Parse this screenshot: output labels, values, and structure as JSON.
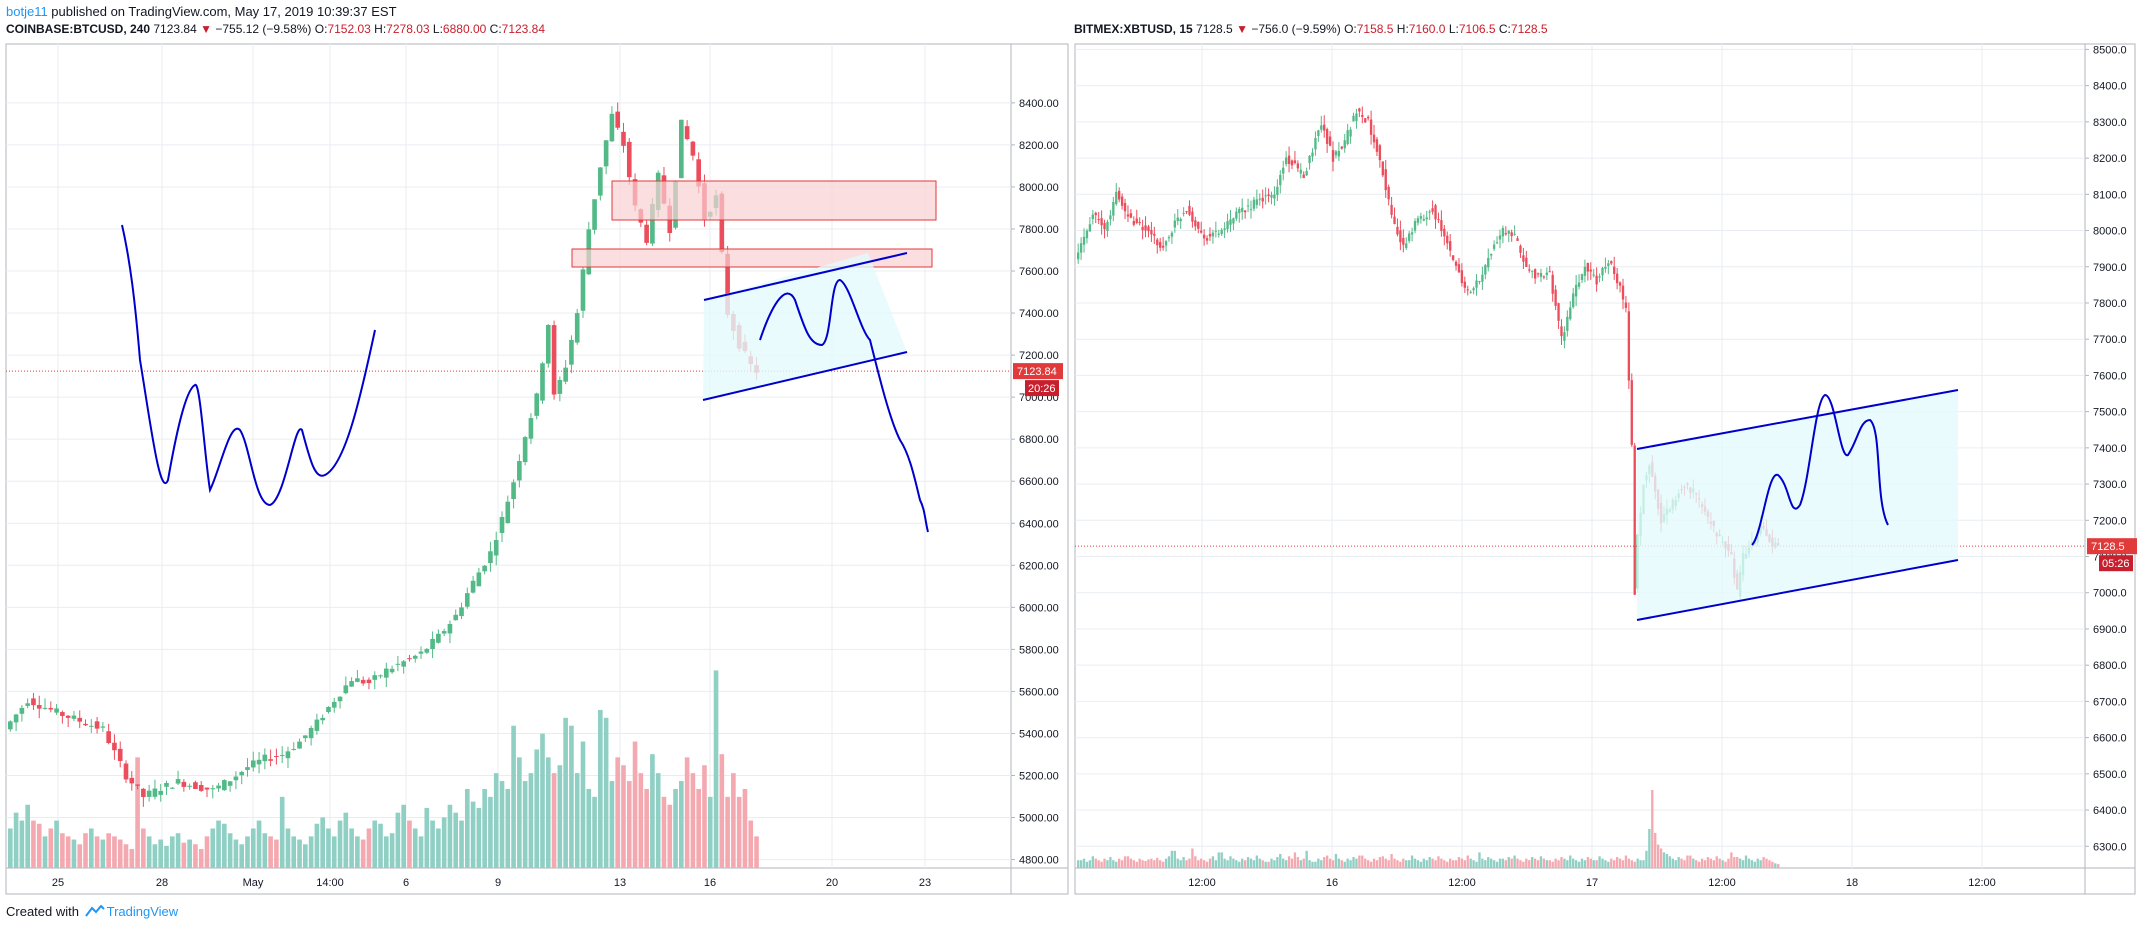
{
  "header": {
    "author": "botje11",
    "text": " published on TradingView.com, May 17, 2019 10:39:37 EST"
  },
  "footer": {
    "created_with": "Created with",
    "brand": "TradingView"
  },
  "colors": {
    "up": "#53b987",
    "down": "#eb4d5c",
    "vol_up": "#8fcfc4",
    "vol_down": "#f4a9b0",
    "drawing": "#0000cc",
    "zone": "#f9d0d3",
    "zone_stroke": "#e13a3a",
    "channel": "#e3fafb",
    "price_line": "#e13a3a",
    "grid": "#e9edf2"
  },
  "chart_data": [
    {
      "type": "candlestick",
      "panel": "left",
      "symbol": "COINBASE:BTCUSD",
      "interval": "240",
      "title_parts": {
        "symbol_interval": "COINBASE:BTCUSD, 240",
        "last": "7123.84",
        "change": "−755.12 (−9.58%)",
        "O_label": "O:",
        "O": "7152.03",
        "H_label": "H:",
        "H": "7278.03",
        "L_label": "L:",
        "L": "6880.00",
        "C_label": "C:",
        "C": "7123.84"
      },
      "y_ticks": [
        "8400.00",
        "8200.00",
        "8000.00",
        "7800.00",
        "7600.00",
        "7400.00",
        "7200.00",
        "7000.00",
        "6800.00",
        "6600.00",
        "6400.00",
        "6200.00",
        "6000.00",
        "5800.00",
        "5600.00",
        "5400.00",
        "5200.00",
        "5000.00",
        "4800.00"
      ],
      "ylim": [
        4760,
        8680
      ],
      "x_ticks": [
        "25",
        "28",
        "May",
        "14:00",
        "6",
        "9",
        "13",
        "16",
        "20",
        "23"
      ],
      "last_price": "7123.84",
      "countdown": "20:26",
      "price_path": [
        [
          0,
          5420
        ],
        [
          4,
          5560
        ],
        [
          9,
          5500
        ],
        [
          13,
          5460
        ],
        [
          17,
          5420
        ],
        [
          21,
          5200
        ],
        [
          24,
          5100
        ],
        [
          27,
          5140
        ],
        [
          30,
          5170
        ],
        [
          33,
          5150
        ],
        [
          36,
          5130
        ],
        [
          39,
          5180
        ],
        [
          42,
          5240
        ],
        [
          45,
          5280
        ],
        [
          48,
          5300
        ],
        [
          51,
          5360
        ],
        [
          54,
          5450
        ],
        [
          57,
          5560
        ],
        [
          60,
          5660
        ],
        [
          63,
          5640
        ],
        [
          66,
          5700
        ],
        [
          69,
          5740
        ],
        [
          72,
          5780
        ],
        [
          75,
          5860
        ],
        [
          78,
          5960
        ],
        [
          81,
          6120
        ],
        [
          84,
          6260
        ],
        [
          86,
          6420
        ],
        [
          88,
          6600
        ],
        [
          90,
          6820
        ],
        [
          92,
          7000
        ],
        [
          94,
          7350
        ],
        [
          95,
          7000
        ],
        [
          97,
          7150
        ],
        [
          99,
          7400
        ],
        [
          101,
          7800
        ],
        [
          103,
          8100
        ],
        [
          105,
          8340
        ],
        [
          107,
          8200
        ],
        [
          109,
          7900
        ],
        [
          111,
          7750
        ],
        [
          113,
          8050
        ],
        [
          115,
          7800
        ],
        [
          117,
          8300
        ],
        [
          119,
          8150
        ],
        [
          121,
          7850
        ],
        [
          123,
          7950
        ],
        [
          125,
          7400
        ],
        [
          127,
          7250
        ],
        [
          129,
          7150
        ],
        [
          130,
          7124
        ]
      ],
      "volume": [
        0.25,
        0.35,
        0.3,
        0.4,
        0.3,
        0.28,
        0.2,
        0.25,
        0.3,
        0.22,
        0.2,
        0.18,
        0.15,
        0.22,
        0.25,
        0.2,
        0.18,
        0.22,
        0.2,
        0.18,
        0.15,
        0.12,
        0.7,
        0.25,
        0.2,
        0.15,
        0.18,
        0.14,
        0.2,
        0.22,
        0.16,
        0.18,
        0.15,
        0.12,
        0.2,
        0.25,
        0.3,
        0.28,
        0.22,
        0.18,
        0.15,
        0.2,
        0.25,
        0.3,
        0.22,
        0.2,
        0.18,
        0.45,
        0.25,
        0.2,
        0.18,
        0.15,
        0.2,
        0.28,
        0.32,
        0.25,
        0.2,
        0.3,
        0.35,
        0.25,
        0.2,
        0.18,
        0.25,
        0.3,
        0.28,
        0.2,
        0.22,
        0.35,
        0.4,
        0.3,
        0.25,
        0.2,
        0.38,
        0.3,
        0.25,
        0.32,
        0.4,
        0.35,
        0.3,
        0.5,
        0.42,
        0.38,
        0.5,
        0.45,
        0.6,
        0.55,
        0.5,
        0.9,
        0.7,
        0.55,
        0.6,
        0.75,
        0.85,
        0.7,
        0.6,
        0.65,
        0.95,
        0.9,
        0.6,
        0.8,
        0.5,
        0.45,
        1.0,
        0.95,
        0.55,
        0.7,
        0.65,
        0.55,
        0.8,
        0.6,
        0.5,
        0.72,
        0.6,
        0.45,
        0.4,
        0.5,
        0.55,
        0.7,
        0.6,
        0.5,
        0.65,
        0.45,
        1.25,
        0.72,
        0.45,
        0.6,
        0.45,
        0.5,
        0.3,
        0.2,
        0.15
      ]
    },
    {
      "type": "candlestick",
      "panel": "right",
      "symbol": "BITMEX:XBTUSD",
      "interval": "15",
      "title_parts": {
        "symbol_interval": "BITMEX:XBTUSD, 15",
        "last": "7128.5",
        "change": "−756.0 (−9.59%)",
        "O_label": "O:",
        "O": "7158.5",
        "H_label": "H:",
        "H": "7160.0",
        "L_label": "L:",
        "L": "7106.5",
        "C_label": "C:",
        "C": "7128.5"
      },
      "y_ticks": [
        "8500.0",
        "8400.0",
        "8300.0",
        "8200.0",
        "8100.0",
        "8000.0",
        "7900.0",
        "7800.0",
        "7700.0",
        "7600.0",
        "7500.0",
        "7400.0",
        "7300.0",
        "7200.0",
        "7100.0",
        "7000.0",
        "6900.0",
        "6800.0",
        "6700.0",
        "6600.0",
        "6500.0",
        "6400.0",
        "6300.0"
      ],
      "ylim": [
        6240,
        8515
      ],
      "x_ticks": [
        "12:00",
        "16",
        "12:00",
        "17",
        "12:00",
        "18",
        "12:00"
      ],
      "last_price": "7128.5",
      "countdown": "05:26",
      "price_path": [
        [
          0,
          7920
        ],
        [
          6,
          8050
        ],
        [
          10,
          8000
        ],
        [
          14,
          8100
        ],
        [
          18,
          8040
        ],
        [
          24,
          8000
        ],
        [
          30,
          7950
        ],
        [
          34,
          8020
        ],
        [
          38,
          8060
        ],
        [
          44,
          7980
        ],
        [
          50,
          8000
        ],
        [
          56,
          8050
        ],
        [
          62,
          8080
        ],
        [
          68,
          8100
        ],
        [
          72,
          8200
        ],
        [
          78,
          8150
        ],
        [
          84,
          8300
        ],
        [
          88,
          8200
        ],
        [
          92,
          8250
        ],
        [
          96,
          8330
        ],
        [
          100,
          8300
        ],
        [
          104,
          8200
        ],
        [
          108,
          8040
        ],
        [
          112,
          7950
        ],
        [
          116,
          8020
        ],
        [
          122,
          8060
        ],
        [
          126,
          7980
        ],
        [
          130,
          7900
        ],
        [
          134,
          7830
        ],
        [
          138,
          7860
        ],
        [
          142,
          7940
        ],
        [
          146,
          8000
        ],
        [
          150,
          7980
        ],
        [
          154,
          7900
        ],
        [
          158,
          7870
        ],
        [
          162,
          7880
        ],
        [
          166,
          7700
        ],
        [
          170,
          7820
        ],
        [
          174,
          7900
        ],
        [
          178,
          7860
        ],
        [
          182,
          7920
        ],
        [
          186,
          7840
        ],
        [
          188,
          7780
        ],
        [
          190,
          7400
        ],
        [
          191,
          7000
        ],
        [
          192,
          7150
        ],
        [
          194,
          7300
        ],
        [
          196,
          7350
        ],
        [
          198,
          7280
        ],
        [
          200,
          7200
        ],
        [
          204,
          7250
        ],
        [
          208,
          7300
        ],
        [
          212,
          7270
        ],
        [
          216,
          7200
        ],
        [
          220,
          7150
        ],
        [
          224,
          7100
        ],
        [
          226,
          7000
        ],
        [
          228,
          7100
        ],
        [
          232,
          7150
        ],
        [
          234,
          7180
        ],
        [
          236,
          7160
        ],
        [
          238,
          7130
        ],
        [
          240,
          7128
        ]
      ],
      "volume": [
        0.1,
        0.12,
        0.08,
        0.1,
        0.15,
        0.12,
        0.1,
        0.08,
        0.12,
        0.1,
        0.14,
        0.1,
        0.08,
        0.12,
        0.1,
        0.15,
        0.12,
        0.1,
        0.08,
        0.12,
        0.1,
        0.09,
        0.11,
        0.12,
        0.1,
        0.13,
        0.1,
        0.08,
        0.12,
        0.15,
        0.22,
        0.12,
        0.1,
        0.14,
        0.1,
        0.12,
        0.25,
        0.15,
        0.1,
        0.12,
        0.1,
        0.08,
        0.12,
        0.15,
        0.1,
        0.2,
        0.12,
        0.1,
        0.15,
        0.12,
        0.1,
        0.08,
        0.12,
        0.1,
        0.14,
        0.12,
        0.1,
        0.16,
        0.12,
        0.1,
        0.08,
        0.12,
        0.1,
        0.14,
        0.18,
        0.12,
        0.1,
        0.15,
        0.12,
        0.2,
        0.14,
        0.1,
        0.12,
        0.22,
        0.1,
        0.08,
        0.12,
        0.1,
        0.14,
        0.16,
        0.12,
        0.1,
        0.18,
        0.12,
        0.1,
        0.08,
        0.12,
        0.1,
        0.14,
        0.12,
        0.16,
        0.12,
        0.1,
        0.08,
        0.12,
        0.1,
        0.14,
        0.15,
        0.12,
        0.1,
        0.18,
        0.12,
        0.1,
        0.08,
        0.12,
        0.1,
        0.16,
        0.12,
        0.1,
        0.08,
        0.12,
        0.1,
        0.14,
        0.12,
        0.1,
        0.15,
        0.12,
        0.1,
        0.08,
        0.12,
        0.1,
        0.14,
        0.12,
        0.1,
        0.16,
        0.12,
        0.1,
        0.08,
        0.2,
        0.12,
        0.1,
        0.14,
        0.12,
        0.1,
        0.08,
        0.12,
        0.1,
        0.14,
        0.12,
        0.16,
        0.12,
        0.1,
        0.08,
        0.12,
        0.1,
        0.14,
        0.12,
        0.1,
        0.15,
        0.12,
        0.1,
        0.08,
        0.12,
        0.1,
        0.14,
        0.12,
        0.1,
        0.16,
        0.12,
        0.1,
        0.08,
        0.12,
        0.1,
        0.14,
        0.12,
        0.1,
        0.15,
        0.12,
        0.1,
        0.08,
        0.12,
        0.1,
        0.14,
        0.12,
        0.1,
        0.16,
        0.12,
        0.1,
        0.08,
        0.12,
        0.1,
        0.22,
        0.5,
        1.0,
        0.45,
        0.3,
        0.25,
        0.2,
        0.18,
        0.15,
        0.12,
        0.1,
        0.14,
        0.12,
        0.1,
        0.16,
        0.12,
        0.1,
        0.08,
        0.12,
        0.1,
        0.14,
        0.12,
        0.1,
        0.15,
        0.12,
        0.1,
        0.08,
        0.12,
        0.2,
        0.14,
        0.12,
        0.1,
        0.16,
        0.12,
        0.1,
        0.08,
        0.12,
        0.1,
        0.14,
        0.12,
        0.1,
        0.08,
        0.06,
        0.05
      ]
    }
  ]
}
